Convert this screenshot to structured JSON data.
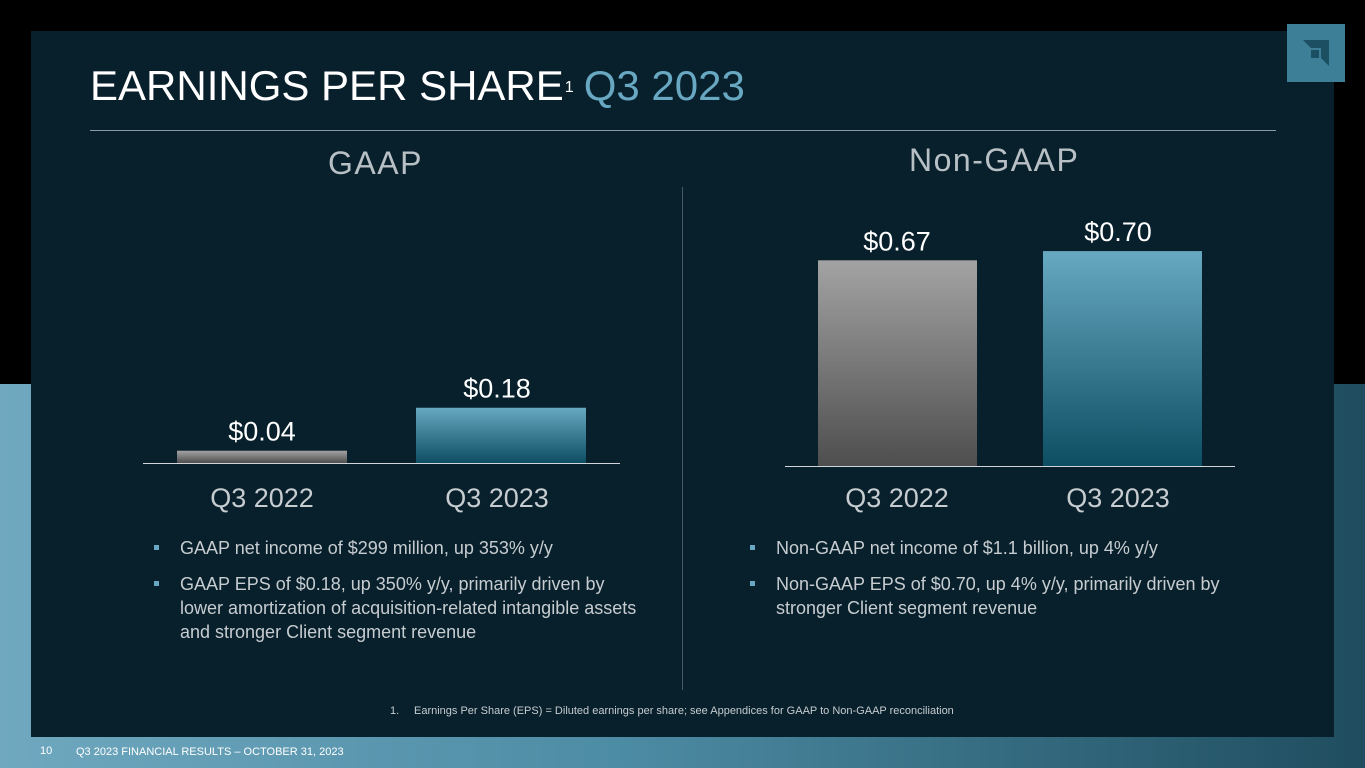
{
  "slide": {
    "title": "EARNINGS PER SHARE",
    "title_sup": "1",
    "title_accent": "Q3 2023",
    "page_number": "10",
    "footer": "Q3 2023 FINANCIAL RESULTS – OCTOBER 31, 2023",
    "footnote_num": "1.",
    "footnote_text": "Earnings Per Share (EPS) = Diluted earnings per share; see Appendices for GAAP to Non-GAAP reconciliation",
    "logo_icon": "amd-logo-icon"
  },
  "gaap": {
    "heading": "GAAP",
    "bullets": [
      "GAAP net income of $299 million, up 353% y/y",
      "GAAP EPS of $0.18, up 350% y/y, primarily driven by lower amortization of acquisition-related intangible assets and stronger Client segment revenue"
    ]
  },
  "nongaap": {
    "heading": "Non-GAAP",
    "bullets": [
      "Non-GAAP net income of $1.1 billion, up 4% y/y",
      "Non-GAAP EPS of $0.70, up 4% y/y, primarily driven by stronger Client segment revenue"
    ]
  },
  "colors": {
    "gray_top": "#a3a3a3",
    "gray_bottom": "#4e4e4e",
    "teal_top": "#67a9c1",
    "teal_bottom": "#0e4e63",
    "label": "#ffffff",
    "axis_label": "#c6ccd0"
  },
  "chart_data": [
    {
      "type": "bar",
      "title": "GAAP",
      "categories": [
        "Q3 2022",
        "Q3 2023"
      ],
      "values": [
        0.04,
        0.18
      ],
      "value_labels": [
        "$0.04",
        "$0.18"
      ],
      "ylim": [
        0,
        0.7
      ],
      "unit": "$"
    },
    {
      "type": "bar",
      "title": "Non-GAAP",
      "categories": [
        "Q3 2022",
        "Q3 2023"
      ],
      "values": [
        0.67,
        0.7
      ],
      "value_labels": [
        "$0.67",
        "$0.70"
      ],
      "ylim": [
        0,
        0.7
      ],
      "unit": "$"
    }
  ]
}
